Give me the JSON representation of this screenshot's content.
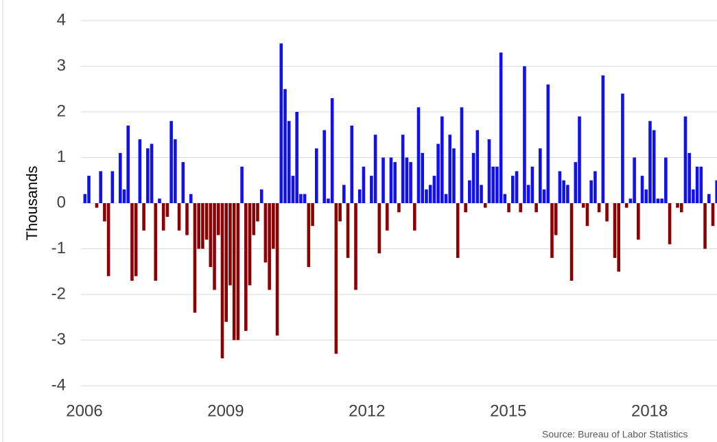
{
  "chart_data": {
    "type": "bar",
    "y_label": "Thousands",
    "source": "Source: Bureau of Labor Statistics",
    "categories": [
      "2006",
      null,
      null,
      null,
      null,
      null,
      null,
      null,
      null,
      null,
      null,
      null,
      null,
      null,
      null,
      null,
      null,
      null,
      null,
      null,
      null,
      null,
      null,
      null,
      null,
      null,
      null,
      null,
      null,
      null,
      null,
      null,
      null,
      null,
      null,
      null,
      "2009",
      null,
      null,
      null,
      null,
      null,
      null,
      null,
      null,
      null,
      null,
      null,
      null,
      null,
      null,
      null,
      null,
      null,
      null,
      null,
      null,
      null,
      null,
      null,
      null,
      null,
      null,
      null,
      null,
      null,
      null,
      null,
      null,
      null,
      null,
      null,
      "2012",
      null,
      null,
      null,
      null,
      null,
      null,
      null,
      null,
      null,
      null,
      null,
      null,
      null,
      null,
      null,
      null,
      null,
      null,
      null,
      null,
      null,
      null,
      null,
      null,
      null,
      null,
      null,
      null,
      null,
      null,
      null,
      null,
      null,
      null,
      null,
      "2015",
      null,
      null,
      null,
      null,
      null,
      null,
      null,
      null,
      null,
      null,
      null,
      null,
      null,
      null,
      null,
      null,
      null,
      null,
      null,
      null,
      null,
      null,
      null,
      null,
      null,
      null,
      null,
      null,
      null,
      null,
      null,
      null,
      null,
      null,
      null,
      "2018",
      null,
      null,
      null,
      null,
      null,
      null,
      null,
      null,
      null,
      null,
      null,
      null,
      null,
      null,
      null,
      null,
      null
    ],
    "values": [
      0.2,
      0.6,
      0,
      -0.1,
      0.7,
      -0.4,
      -1.6,
      0.7,
      0,
      1.1,
      0.3,
      1.7,
      -1.7,
      -1.6,
      1.4,
      -0.6,
      1.2,
      1.3,
      -1.7,
      0.1,
      -0.6,
      -0.3,
      1.8,
      1.4,
      -0.6,
      0.9,
      -0.7,
      0.2,
      -2.4,
      -1.0,
      -1.0,
      -0.8,
      -1.4,
      -1.9,
      -0.7,
      -3.4,
      -2.6,
      -1.8,
      -3.0,
      -3.0,
      0.8,
      -2.8,
      -1.8,
      -0.7,
      -0.4,
      0.3,
      -1.3,
      -1.9,
      -1.0,
      -2.9,
      3.5,
      2.5,
      1.8,
      0.6,
      2.0,
      0.2,
      0.2,
      -1.4,
      -0.5,
      1.2,
      0,
      1.6,
      0.1,
      2.3,
      -3.3,
      -0.4,
      0.4,
      -1.2,
      1.7,
      -1.9,
      0.3,
      0.8,
      0,
      0.6,
      1.5,
      -1.1,
      1.0,
      -0.6,
      1.0,
      0.9,
      -0.2,
      1.5,
      1.0,
      0.9,
      -0.6,
      2.1,
      1.1,
      0.3,
      0.4,
      0.6,
      1.3,
      1.9,
      0.2,
      1.5,
      1.2,
      -1.2,
      2.1,
      -0.2,
      0.5,
      1.1,
      1.6,
      0.4,
      -0.1,
      1.4,
      0.8,
      0.8,
      3.3,
      0.2,
      -0.2,
      0.6,
      0.7,
      -0.2,
      3.0,
      0.4,
      0.8,
      -0.2,
      1.2,
      0.3,
      2.6,
      -1.2,
      -0.7,
      0.7,
      0.5,
      0.4,
      -1.7,
      0.9,
      1.9,
      -0.1,
      -0.5,
      0.5,
      0.7,
      -0.2,
      2.8,
      -0.4,
      0,
      -1.2,
      -1.5,
      2.4,
      -0.1,
      0.1,
      1.0,
      -0.8,
      0.6,
      0.3,
      1.8,
      1.6,
      0.1,
      0.1,
      1.0,
      -0.9,
      0,
      -0.1,
      -0.2,
      1.9,
      1.1,
      0.3,
      0.8,
      0.8,
      -1.0,
      0.2,
      -0.5,
      0.5
    ],
    "positive_color": "#1010f0",
    "negative_color": "#8b0000",
    "ylim": [
      -4,
      4
    ],
    "yticks": [
      -4,
      -3,
      -2,
      -1,
      0,
      1,
      2,
      3,
      4
    ],
    "grid": true
  }
}
